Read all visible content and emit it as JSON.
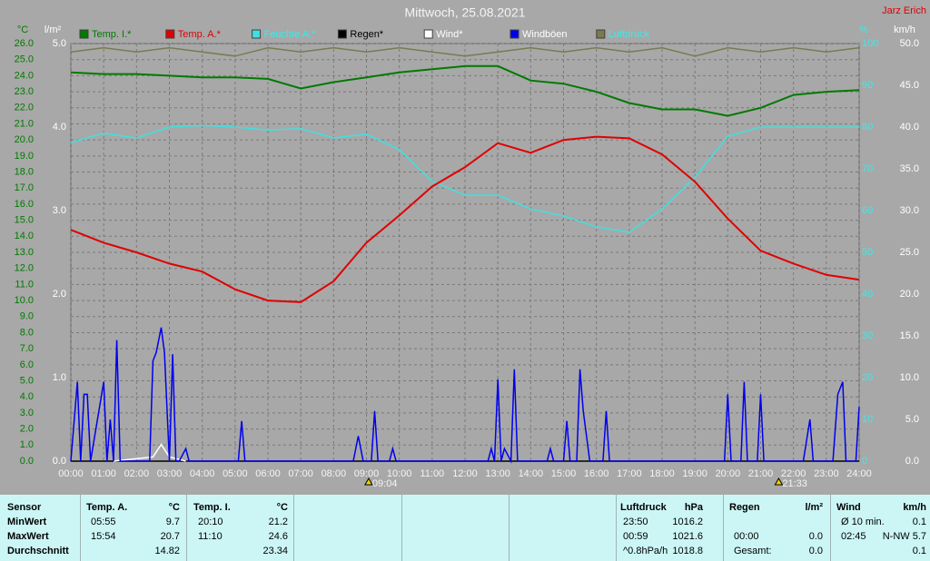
{
  "chart_data": {
    "type": "line",
    "title": "Mittwoch, 25.08.2021",
    "author": "Jarz Erich",
    "y_label": "°C",
    "y3_label": "l/m²",
    "y2_label": "%",
    "y4_label": "km/h",
    "grid": true,
    "x": [
      0,
      1,
      2,
      3,
      4,
      5,
      6,
      7,
      8,
      9,
      10,
      11,
      12,
      13,
      14,
      15,
      16,
      17,
      18,
      19,
      20,
      21,
      22,
      23,
      24
    ],
    "xlim": [
      0,
      24
    ],
    "xticks": [
      {
        "value": 0,
        "label": "00:00"
      },
      {
        "value": 1,
        "label": "01:00"
      },
      {
        "value": 2,
        "label": "02:00"
      },
      {
        "value": 3,
        "label": "03:00"
      },
      {
        "value": 4,
        "label": "04:00"
      },
      {
        "value": 5,
        "label": "05:00"
      },
      {
        "value": 6,
        "label": "06:00"
      },
      {
        "value": 7,
        "label": "07:00"
      },
      {
        "value": 8,
        "label": "08:00"
      },
      {
        "value": 9,
        "label": "09:00"
      },
      {
        "value": 10,
        "label": "10:00"
      },
      {
        "value": 11,
        "label": "11:00"
      },
      {
        "value": 12,
        "label": "12:00"
      },
      {
        "value": 13,
        "label": "13:00"
      },
      {
        "value": 14,
        "label": "14:00"
      },
      {
        "value": 15,
        "label": "15:00"
      },
      {
        "value": 16,
        "label": "16:00"
      },
      {
        "value": 17,
        "label": "17:00"
      },
      {
        "value": 18,
        "label": "18:00"
      },
      {
        "value": 19,
        "label": "19:00"
      },
      {
        "value": 20,
        "label": "20:00"
      },
      {
        "value": 21,
        "label": "21:00"
      },
      {
        "value": 22,
        "label": "22:00"
      },
      {
        "value": 23,
        "label": "23:00"
      },
      {
        "value": 24,
        "label": "24:00"
      }
    ],
    "ylim": [
      0,
      26
    ],
    "yticks": [
      {
        "value": 0,
        "label": "0.0"
      },
      {
        "value": 1,
        "label": "1.0"
      },
      {
        "value": 2,
        "label": "2.0"
      },
      {
        "value": 3,
        "label": "3.0"
      },
      {
        "value": 4,
        "label": "4.0"
      },
      {
        "value": 5,
        "label": "5.0"
      },
      {
        "value": 6,
        "label": "6.0"
      },
      {
        "value": 7,
        "label": "7.0"
      },
      {
        "value": 8,
        "label": "8.0"
      },
      {
        "value": 9,
        "label": "9.0"
      },
      {
        "value": 10,
        "label": "10.0"
      },
      {
        "value": 11,
        "label": "11.0"
      },
      {
        "value": 12,
        "label": "12.0"
      },
      {
        "value": 13,
        "label": "13.0"
      },
      {
        "value": 14,
        "label": "14.0"
      },
      {
        "value": 15,
        "label": "15.0"
      },
      {
        "value": 16,
        "label": "16.0"
      },
      {
        "value": 17,
        "label": "17.0"
      },
      {
        "value": 18,
        "label": "18.0"
      },
      {
        "value": 19,
        "label": "19.0"
      },
      {
        "value": 20,
        "label": "20.0"
      },
      {
        "value": 21,
        "label": "21.0"
      },
      {
        "value": 22,
        "label": "22.0"
      },
      {
        "value": 23,
        "label": "23.0"
      },
      {
        "value": 24,
        "label": "24.0"
      },
      {
        "value": 25,
        "label": "25.0"
      },
      {
        "value": 26,
        "label": "26.0"
      }
    ],
    "y3lim": [
      0,
      5
    ],
    "y3ticks": [
      {
        "value": 0,
        "label": "0.0"
      },
      {
        "value": 1,
        "label": "1.0"
      },
      {
        "value": 2,
        "label": "2.0"
      },
      {
        "value": 3,
        "label": "3.0"
      },
      {
        "value": 4,
        "label": "4.0"
      },
      {
        "value": 5,
        "label": "5.0"
      }
    ],
    "y2lim": [
      0,
      100
    ],
    "y2ticks": [
      0,
      10,
      20,
      30,
      40,
      50,
      60,
      70,
      80,
      90,
      100
    ],
    "y4lim": [
      0,
      50
    ],
    "y4ticks": [
      {
        "value": 0,
        "label": "0.0"
      },
      {
        "value": 5,
        "label": "5.0"
      },
      {
        "value": 10,
        "label": "10.0"
      },
      {
        "value": 15,
        "label": "15.0"
      },
      {
        "value": 20,
        "label": "20.0"
      },
      {
        "value": 25,
        "label": "25.0"
      },
      {
        "value": 30,
        "label": "30.0"
      },
      {
        "value": 35,
        "label": "35.0"
      },
      {
        "value": 40,
        "label": "40.0"
      },
      {
        "value": 45,
        "label": "45.0"
      },
      {
        "value": 50,
        "label": "50.0"
      }
    ],
    "series": [
      {
        "name": "Temp. I.*",
        "color": "#007a00",
        "label_color": "#007a00",
        "axis": "y",
        "values": [
          24.2,
          24.1,
          24.1,
          24.0,
          23.9,
          23.9,
          23.8,
          23.2,
          23.6,
          23.9,
          24.2,
          24.4,
          24.6,
          24.6,
          23.7,
          23.5,
          23.0,
          22.3,
          21.9,
          21.9,
          21.5,
          22.0,
          22.8,
          23.0,
          23.1
        ]
      },
      {
        "name": "Temp. A.*",
        "color": "#e00000",
        "label_color": "#e00000",
        "axis": "y",
        "values": [
          14.4,
          13.6,
          13.0,
          12.3,
          11.8,
          10.7,
          10.0,
          9.9,
          11.2,
          13.6,
          15.3,
          17.1,
          18.3,
          19.8,
          19.2,
          20.0,
          20.2,
          20.1,
          19.1,
          17.4,
          15.1,
          13.1,
          12.3,
          11.6,
          11.3
        ]
      },
      {
        "name": "Feuchte A.*",
        "color": "#40e0e0",
        "label_color": "#40e8e8",
        "axis": "y2",
        "values": [
          76.3,
          78.5,
          77.4,
          80.0,
          80.4,
          80.0,
          79.3,
          79.6,
          77.4,
          78.3,
          74.6,
          67.0,
          63.7,
          63.7,
          60.4,
          58.7,
          56.1,
          54.8,
          60.4,
          68.0,
          77.8,
          80.0,
          80.0,
          80.0,
          80.0
        ]
      },
      {
        "name": "Regen*",
        "color": "#000000",
        "label_color": "#000000",
        "axis": "y3",
        "x": [
          0,
          24
        ],
        "values": [
          0,
          0
        ]
      },
      {
        "name": "Wind*",
        "color": "#ffffff",
        "label_color": "#ffffff",
        "axis": "y4",
        "x": [
          1.3,
          2.5,
          2.75,
          3.0,
          3.5
        ],
        "values": [
          0,
          0.5,
          2,
          0.5,
          0
        ]
      },
      {
        "name": "Windböen",
        "color": "#0000ee",
        "label_color": "#ffffff",
        "axis": "y4",
        "x": [
          0,
          0.2,
          0.3,
          0.4,
          0.5,
          0.6,
          1.0,
          1.1,
          1.2,
          1.3,
          1.4,
          1.5,
          2.4,
          2.5,
          2.6,
          2.75,
          2.85,
          3.0,
          3.1,
          3.2,
          3.3,
          3.5,
          3.6,
          5.1,
          5.2,
          5.3,
          8.6,
          8.75,
          8.9,
          9.15,
          9.25,
          9.35,
          9.7,
          9.8,
          9.9,
          12.7,
          12.8,
          12.9,
          13.0,
          13.1,
          13.2,
          13.4,
          13.5,
          13.6,
          14.5,
          14.6,
          14.7,
          15.0,
          15.1,
          15.2,
          15.4,
          15.5,
          15.6,
          15.7,
          15.8,
          16.2,
          16.3,
          16.4,
          19.9,
          20.0,
          20.1,
          20.4,
          20.5,
          20.6,
          20.9,
          21.0,
          21.1,
          22.3,
          22.5,
          22.6,
          23.2,
          23.35,
          23.5,
          23.6,
          23.9,
          24
        ],
        "values": [
          0,
          9.5,
          0,
          8,
          8,
          0,
          9.5,
          0,
          5,
          0,
          14.5,
          0,
          0,
          12,
          13,
          16,
          13,
          0,
          12.8,
          0,
          0,
          1.5,
          0,
          0,
          4.8,
          0,
          0,
          3,
          0,
          0,
          6,
          0,
          0,
          1.5,
          0,
          0,
          1.5,
          0,
          9.8,
          0,
          1.5,
          0,
          11,
          0,
          0,
          1.5,
          0,
          0,
          4.8,
          0,
          0,
          11,
          6,
          3,
          0,
          0,
          6,
          0,
          0,
          8,
          0,
          0,
          9.5,
          0,
          0,
          8,
          0,
          0,
          5,
          0,
          0,
          8,
          9.5,
          0,
          0,
          6.5
        ]
      },
      {
        "name": "Luftdruck",
        "color": "#7a7a50",
        "label_color": "#40e8e8",
        "axis": "y2",
        "values": [
          98,
          99,
          98,
          99,
          98,
          97,
          99,
          98,
          99,
          98,
          99,
          98,
          97,
          98,
          99,
          98,
          99,
          98,
          99,
          97,
          99,
          98,
          99,
          98,
          99
        ]
      }
    ],
    "annotations": [
      {
        "text": "09:04",
        "x": 9.0667
      },
      {
        "text": "21:33",
        "x": 21.55
      }
    ]
  },
  "table": {
    "header": {
      "sensor": "Sensor",
      "temp_a": "Temp. A.",
      "temp_a_unit": "°C",
      "temp_i": "Temp. I.",
      "temp_i_unit": "°C",
      "pressure": "Luftdruck",
      "pressure_unit": "hPa",
      "rain": "Regen",
      "rain_unit": "l/m²",
      "wind": "Wind",
      "wind_unit": "km/h"
    },
    "rows": [
      {
        "label": "MinWert",
        "temp_a_time": "05:55",
        "temp_a_value": "9.7",
        "temp_i_time": "20:10",
        "temp_i_value": "21.2",
        "pressure_time": "23:50",
        "pressure_value": "1016.2",
        "wind_time": "Ø 10 min.",
        "wind_value": "0.1"
      },
      {
        "label": "MaxWert",
        "temp_a_time": "15:54",
        "temp_a_value": "20.7",
        "temp_i_time": "11:10",
        "temp_i_value": "24.6",
        "pressure_time": "00:59",
        "pressure_value": "1021.6",
        "rain_time": "00:00",
        "rain_value": "0.0",
        "wind_time": "02:45",
        "wind_value": "N-NW 5.7"
      },
      {
        "label": "Durchschnitt",
        "temp_a_value": "14.82",
        "temp_i_value": "23.34",
        "pressure_time": "^0.8hPa/h",
        "pressure_value": "1018.8",
        "rain_time": "Gesamt:",
        "rain_value": "0.0",
        "wind_value": "0.1"
      }
    ]
  }
}
